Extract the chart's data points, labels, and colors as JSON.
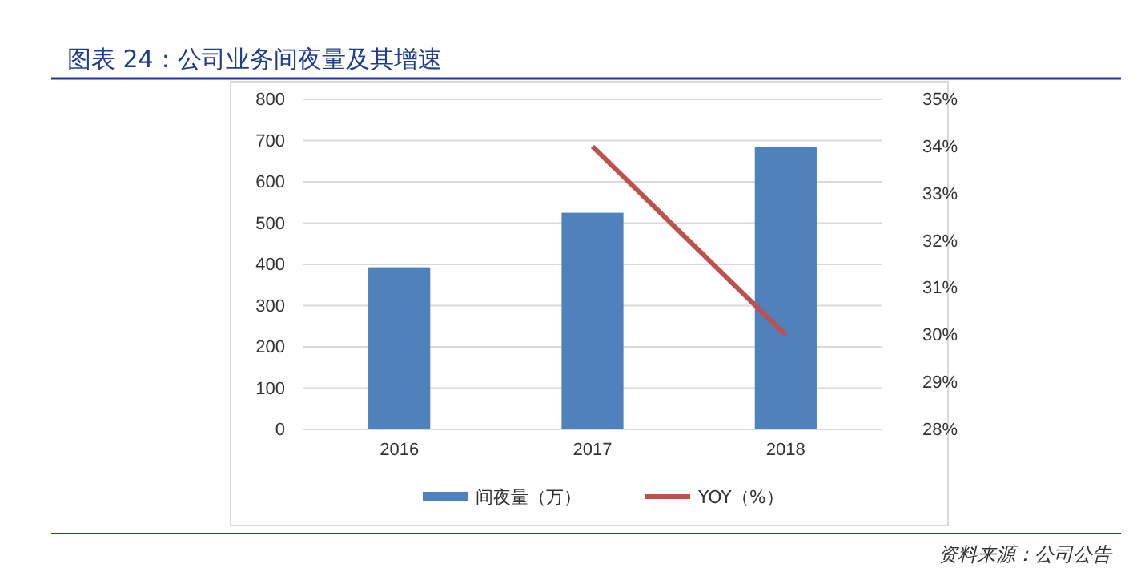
{
  "chart_data": {
    "type": "bar",
    "title": "图表 24：公司业务间夜量及其增速",
    "categories": [
      "2016",
      "2017",
      "2018"
    ],
    "series": [
      {
        "name": "间夜量（万）",
        "color": "#4f81bd",
        "values": [
          393,
          525,
          685
        ]
      },
      {
        "name": "YOY（%）",
        "type": "line",
        "axis": "y2",
        "color": "#c0504d",
        "values": [
          null,
          34,
          30
        ]
      }
    ],
    "ylim": [
      0,
      800
    ],
    "yticks": [
      0,
      100,
      200,
      300,
      400,
      500,
      600,
      700,
      800
    ],
    "y2lim": [
      28,
      35
    ],
    "y2ticks": [
      {
        "value": 28,
        "label": "28%"
      },
      {
        "value": 29,
        "label": "29%"
      },
      {
        "value": 30,
        "label": "30%"
      },
      {
        "value": 31,
        "label": "31%"
      },
      {
        "value": 32,
        "label": "32%"
      },
      {
        "value": 33,
        "label": "33%"
      },
      {
        "value": 34,
        "label": "34%"
      },
      {
        "value": 35,
        "label": "35%"
      }
    ],
    "grid": "y",
    "legend": "bottom",
    "marker": "none",
    "line_style": "solid",
    "annotations": [
      "资料来源：公司公告"
    ]
  }
}
